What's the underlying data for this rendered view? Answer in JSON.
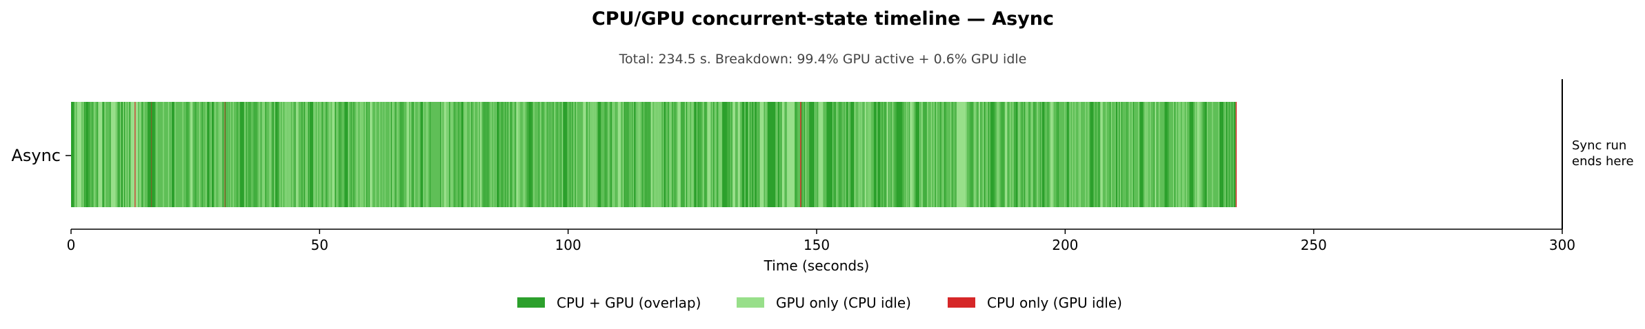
{
  "chart_data": {
    "type": "broken-bar timeline",
    "title": "CPU/GPU concurrent-state timeline — Async",
    "subtitle": "Total: 234.5 s. Breakdown: 99.4% GPU active + 0.6% GPU idle",
    "xlabel": "Time (seconds)",
    "ylabel": "",
    "xlim": [
      0,
      300
    ],
    "x_ticks": [
      0,
      50,
      100,
      150,
      200,
      250,
      300
    ],
    "categories": [
      "Async"
    ],
    "total_seconds": 234.5,
    "gpu_active_pct": 99.4,
    "gpu_idle_pct": 0.6,
    "marker": {
      "x": 300,
      "label_line1": "Sync run",
      "label_line2": "ends here"
    },
    "legend_position": "bottom-center",
    "legend": [
      {
        "key": "overlap",
        "label": "CPU + GPU (overlap)",
        "color": "#2ca02c"
      },
      {
        "key": "gpu_only",
        "label": "GPU only (CPU idle)",
        "color": "#98df8a"
      },
      {
        "key": "cpu_only",
        "label": "CPU only (GPU idle)",
        "color": "#d62728"
      }
    ],
    "series": [
      {
        "name": "CPU + GPU (overlap)",
        "key": "overlap",
        "color": "#2ca02c",
        "segments": [
          [
            0.0,
            0.6
          ],
          [
            3.0,
            0.5
          ],
          [
            6.0,
            0.6
          ],
          [
            10.0,
            0.4
          ],
          [
            15.4,
            1.5
          ],
          [
            20.0,
            0.8
          ],
          [
            27.5,
            1.2
          ],
          [
            34.0,
            0.8
          ],
          [
            41.0,
            0.6
          ],
          [
            48.0,
            0.9
          ],
          [
            55.0,
            0.7
          ],
          [
            62.5,
            0.6
          ],
          [
            70.0,
            0.8
          ],
          [
            78.5,
            0.6
          ],
          [
            85.0,
            1.0
          ],
          [
            92.0,
            0.7
          ],
          [
            99.0,
            0.8
          ],
          [
            106.0,
            0.6
          ],
          [
            113.0,
            0.9
          ],
          [
            119.0,
            0.6
          ],
          [
            125.5,
            0.7
          ],
          [
            131.0,
            1.0
          ],
          [
            135.0,
            1.2
          ],
          [
            137.0,
            0.8
          ],
          [
            140.0,
            2.5
          ],
          [
            148.5,
            1.6
          ],
          [
            152.0,
            1.5
          ],
          [
            156.0,
            1.5
          ],
          [
            161.5,
            1.3
          ],
          [
            166.0,
            1.2
          ],
          [
            170.0,
            1.0
          ],
          [
            185.0,
            0.7
          ],
          [
            190.0,
            0.6
          ],
          [
            195.0,
            0.8
          ],
          [
            200.0,
            0.6
          ],
          [
            205.0,
            0.7
          ],
          [
            210.0,
            0.6
          ],
          [
            215.0,
            0.7
          ],
          [
            220.0,
            0.6
          ],
          [
            225.0,
            0.8
          ],
          [
            228.0,
            0.6
          ],
          [
            231.0,
            1.6
          ],
          [
            233.5,
            0.7
          ]
        ]
      },
      {
        "name": "GPU only (CPU idle)",
        "key": "gpu_only",
        "color": "#98df8a",
        "segments": [
          [
            1.2,
            0.9
          ],
          [
            5.5,
            0.8
          ],
          [
            8.0,
            1.0
          ],
          [
            12.0,
            2.0
          ],
          [
            24.0,
            0.8
          ],
          [
            31.5,
            0.6
          ],
          [
            38.0,
            0.7
          ],
          [
            45.0,
            0.6
          ],
          [
            52.5,
            0.5
          ],
          [
            60.0,
            0.6
          ],
          [
            67.5,
            0.5
          ],
          [
            75.0,
            0.5
          ],
          [
            82.0,
            0.6
          ],
          [
            89.5,
            0.5
          ],
          [
            96.0,
            0.6
          ],
          [
            103.0,
            0.5
          ],
          [
            110.0,
            0.6
          ],
          [
            116.5,
            0.5
          ],
          [
            122.0,
            0.6
          ],
          [
            128.0,
            1.0
          ],
          [
            133.0,
            1.5
          ],
          [
            138.5,
            1.2
          ],
          [
            143.0,
            2.5
          ],
          [
            150.5,
            0.8
          ],
          [
            155.0,
            0.8
          ],
          [
            159.0,
            1.0
          ],
          [
            164.0,
            1.0
          ],
          [
            168.5,
            0.8
          ],
          [
            178.0,
            2.0
          ],
          [
            182.5,
            0.5
          ],
          [
            188.0,
            0.5
          ],
          [
            197.0,
            0.5
          ],
          [
            207.0,
            0.5
          ],
          [
            218.0,
            0.5
          ],
          [
            226.5,
            0.5
          ]
        ]
      },
      {
        "name": "CPU only (GPU idle)",
        "key": "cpu_only",
        "color": "#d62728",
        "segments": [
          [
            12.8,
            0.15
          ],
          [
            16.1,
            0.2
          ],
          [
            30.9,
            0.15
          ],
          [
            146.7,
            0.2
          ],
          [
            234.3,
            0.2
          ]
        ]
      }
    ]
  }
}
